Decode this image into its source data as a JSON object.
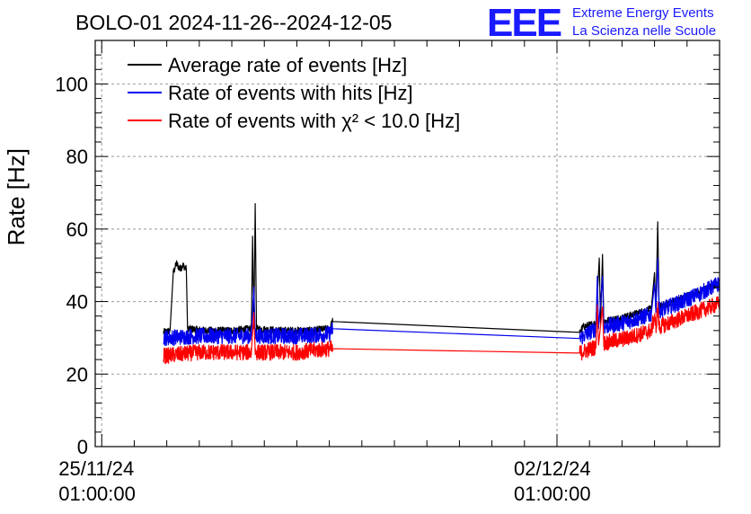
{
  "chart_data": {
    "type": "line",
    "title": "BOLO-01 2024-11-26--2024-12-05",
    "ylabel": "Rate [Hz]",
    "xlabel": "",
    "ylim": [
      0,
      112
    ],
    "xlim": [
      -0.1,
      9.5
    ],
    "y_ticks": [
      0,
      20,
      40,
      60,
      80,
      100
    ],
    "x_ticks": [
      {
        "x": 0,
        "line1": "25/11/24",
        "line2": "01:00:00"
      },
      {
        "x": 7,
        "line1": "02/12/24",
        "line2": "01:00:00"
      }
    ],
    "grid": true,
    "legend_position": "top-left",
    "logo": {
      "mark": "EEE",
      "line1": "Extreme Energy Events",
      "line2": "La Scienza nelle Scuole"
    },
    "series": [
      {
        "name": "Average rate of events [Hz]",
        "color": "#000000",
        "points": [
          [
            0.95,
            31.5
          ],
          [
            1.05,
            32
          ],
          [
            1.1,
            48
          ],
          [
            1.15,
            50.5
          ],
          [
            1.2,
            49
          ],
          [
            1.25,
            50
          ],
          [
            1.3,
            49
          ],
          [
            1.32,
            32.5
          ],
          [
            1.6,
            32
          ],
          [
            2.0,
            32
          ],
          [
            2.3,
            32.5
          ],
          [
            2.32,
            58
          ],
          [
            2.34,
            32.5
          ],
          [
            2.36,
            67
          ],
          [
            2.38,
            32.5
          ],
          [
            2.7,
            32
          ],
          [
            3.2,
            32
          ],
          [
            3.5,
            32.5
          ],
          [
            3.55,
            34.5
          ],
          [
            7.35,
            31.5
          ],
          [
            7.4,
            33
          ],
          [
            7.6,
            34
          ],
          [
            7.65,
            52
          ],
          [
            7.67,
            34
          ],
          [
            7.7,
            53
          ],
          [
            7.72,
            34.5
          ],
          [
            8.1,
            36
          ],
          [
            8.45,
            38
          ],
          [
            8.5,
            48
          ],
          [
            8.52,
            38
          ],
          [
            8.55,
            62
          ],
          [
            8.57,
            38.5
          ],
          [
            9.0,
            41.5
          ],
          [
            9.5,
            45
          ]
        ],
        "noise_band": 1.0
      },
      {
        "name": "Rate of events with hits [Hz]",
        "color": "#0000ee",
        "points": [
          [
            0.95,
            30
          ],
          [
            1.5,
            30.5
          ],
          [
            2.3,
            30.5
          ],
          [
            2.34,
            44
          ],
          [
            2.36,
            30.5
          ],
          [
            3.0,
            30.5
          ],
          [
            3.5,
            31
          ],
          [
            3.55,
            32.5
          ],
          [
            7.35,
            29.8
          ],
          [
            7.45,
            31
          ],
          [
            7.6,
            32.5
          ],
          [
            7.62,
            47
          ],
          [
            7.64,
            32.5
          ],
          [
            7.7,
            47
          ],
          [
            7.72,
            33
          ],
          [
            8.1,
            34.5
          ],
          [
            8.45,
            36.5
          ],
          [
            8.5,
            45
          ],
          [
            8.52,
            37
          ],
          [
            8.55,
            52
          ],
          [
            8.57,
            37.5
          ],
          [
            9.0,
            40.5
          ],
          [
            9.5,
            45
          ]
        ],
        "noise_band": 2.2
      },
      {
        "name": "Rate of events with χ² < 10.0 [Hz]",
        "color": "#ff0000",
        "points": [
          [
            0.95,
            25
          ],
          [
            1.5,
            26
          ],
          [
            2.3,
            26
          ],
          [
            2.34,
            37
          ],
          [
            2.36,
            26
          ],
          [
            3.0,
            26
          ],
          [
            3.5,
            27
          ],
          [
            3.55,
            27
          ],
          [
            7.35,
            25.8
          ],
          [
            7.45,
            26.5
          ],
          [
            7.6,
            27.5
          ],
          [
            7.62,
            39
          ],
          [
            7.64,
            28
          ],
          [
            7.7,
            38.5
          ],
          [
            7.72,
            28.5
          ],
          [
            8.1,
            30
          ],
          [
            8.45,
            32
          ],
          [
            8.5,
            36
          ],
          [
            8.52,
            32.5
          ],
          [
            8.55,
            38.5
          ],
          [
            8.57,
            33
          ],
          [
            9.0,
            36
          ],
          [
            9.5,
            39.5
          ]
        ],
        "noise_band": 2.2
      }
    ]
  }
}
